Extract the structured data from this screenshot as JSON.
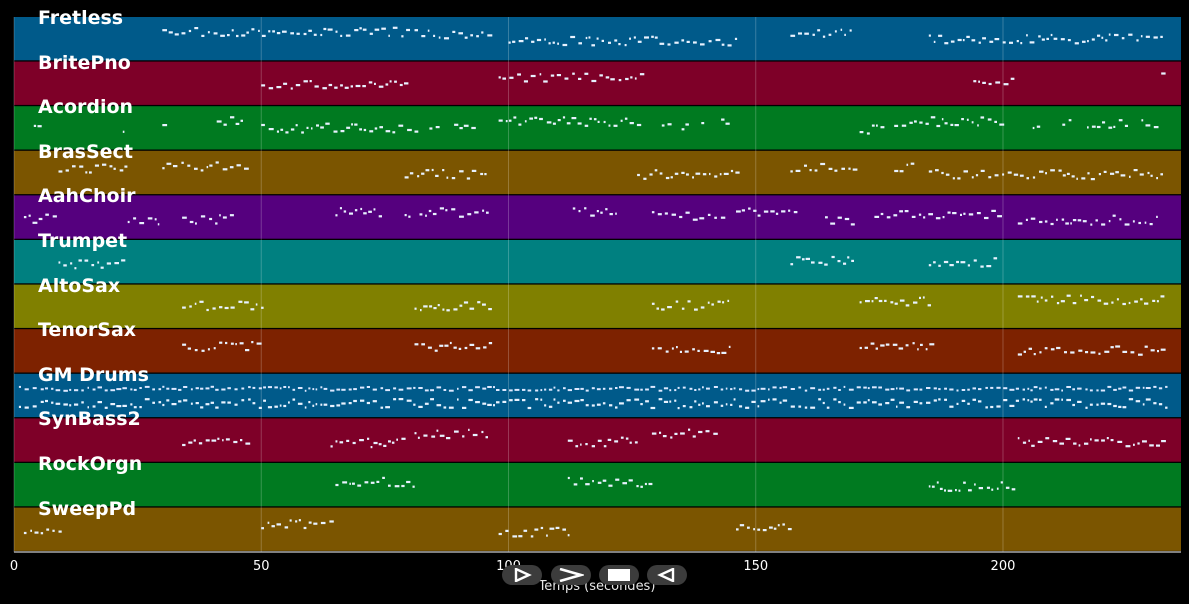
{
  "tracks": [
    {
      "name": "Fretless",
      "color": "#005a8a"
    },
    {
      "name": "BritePno",
      "color": "#7e0028"
    },
    {
      "name": "Acordion",
      "color": "#007a20"
    },
    {
      "name": "BrasSect",
      "color": "#7b5500"
    },
    {
      "name": "AahChoir",
      "color": "#55007e"
    },
    {
      "name": "Trumpet",
      "color": "#008080"
    },
    {
      "name": "AltoSax",
      "color": "#808000"
    },
    {
      "name": "TenorSax",
      "color": "#7d2200"
    },
    {
      "name": "GM Drums",
      "color": "#005a8a"
    },
    {
      "name": "SynBass2",
      "color": "#7e0028"
    },
    {
      "name": "RockOrgn",
      "color": "#007a20"
    },
    {
      "name": "SweepPd",
      "color": "#7b5500"
    }
  ],
  "axis": {
    "xlabel": "Temps (secondes)",
    "ticks": [
      "0",
      "50",
      "100",
      "150",
      "200"
    ],
    "tick_values": [
      0,
      50,
      100,
      150,
      200
    ],
    "range": [
      0,
      236
    ]
  },
  "notes": [
    {
      "track": 0,
      "segments": [
        [
          30,
          80
        ],
        [
          81,
          97
        ],
        [
          100,
          146
        ],
        [
          157,
          170
        ],
        [
          185,
          232
        ]
      ]
    },
    {
      "track": 1,
      "segments": [
        [
          50,
          79
        ],
        [
          98,
          127
        ],
        [
          194,
          202
        ],
        [
          232,
          232.5
        ]
      ]
    },
    {
      "track": 2,
      "segments": [
        [
          4,
          6
        ],
        [
          22,
          23
        ],
        [
          30,
          31
        ],
        [
          41,
          46
        ],
        [
          50,
          82
        ],
        [
          84,
          86
        ],
        [
          89,
          94
        ],
        [
          98,
          126
        ],
        [
          131,
          133
        ],
        [
          135,
          136
        ],
        [
          139,
          140
        ],
        [
          143,
          144
        ],
        [
          171,
          176
        ],
        [
          178,
          200
        ],
        [
          206,
          208
        ],
        [
          212,
          214
        ],
        [
          217,
          225
        ],
        [
          228,
          232
        ]
      ]
    },
    {
      "track": 3,
      "segments": [
        [
          9,
          23
        ],
        [
          30,
          48
        ],
        [
          79,
          96
        ],
        [
          126,
          146
        ],
        [
          157,
          170
        ],
        [
          178,
          182
        ],
        [
          185,
          232
        ]
      ]
    },
    {
      "track": 4,
      "segments": [
        [
          2,
          9
        ],
        [
          23,
          30
        ],
        [
          34,
          44
        ],
        [
          65,
          75
        ],
        [
          79,
          80
        ],
        [
          82,
          96
        ],
        [
          113,
          122
        ],
        [
          129,
          143
        ],
        [
          146,
          158
        ],
        [
          164,
          170
        ],
        [
          174,
          200
        ],
        [
          203,
          232
        ]
      ]
    },
    {
      "track": 5,
      "segments": [
        [
          9,
          22
        ],
        [
          157,
          170
        ],
        [
          185,
          199
        ]
      ]
    },
    {
      "track": 6,
      "segments": [
        [
          34,
          50
        ],
        [
          81,
          97
        ],
        [
          129,
          145
        ],
        [
          171,
          186
        ],
        [
          203,
          232
        ]
      ]
    },
    {
      "track": 7,
      "segments": [
        [
          34,
          50
        ],
        [
          81,
          97
        ],
        [
          129,
          145
        ],
        [
          171,
          186
        ],
        [
          203,
          232
        ]
      ]
    },
    {
      "track": 8,
      "segments": [
        [
          1,
          233
        ]
      ]
    },
    {
      "track": 9,
      "segments": [
        [
          34,
          48
        ],
        [
          64,
          79
        ],
        [
          81,
          96
        ],
        [
          112,
          126
        ],
        [
          129,
          143
        ],
        [
          203,
          232
        ]
      ]
    },
    {
      "track": 10,
      "segments": [
        [
          65,
          81
        ],
        [
          112,
          129
        ],
        [
          185,
          202
        ]
      ]
    },
    {
      "track": 11,
      "segments": [
        [
          2,
          9
        ],
        [
          50,
          65
        ],
        [
          98,
          112
        ],
        [
          146,
          157
        ]
      ]
    }
  ],
  "controls": [
    {
      "name": "play-button",
      "icon": "play-icon"
    },
    {
      "name": "fast-forward-button",
      "icon": "fast-forward-icon"
    },
    {
      "name": "stop-button",
      "icon": "stop-icon"
    },
    {
      "name": "rewind-button",
      "icon": "rewind-icon"
    }
  ]
}
